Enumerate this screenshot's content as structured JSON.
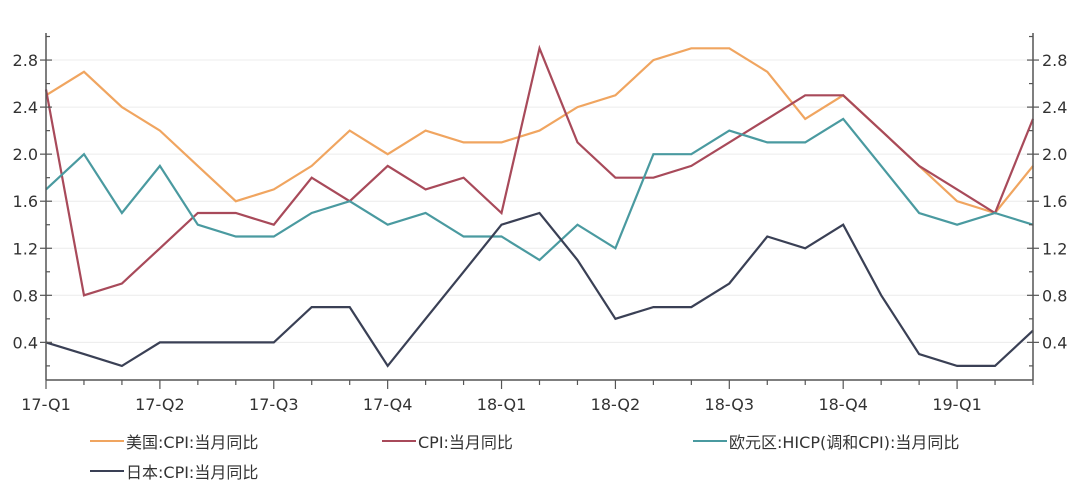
{
  "chart_data": {
    "type": "line",
    "title": "",
    "xlabel": "",
    "ylabel": "",
    "ylim": [
      0.08,
      3.03
    ],
    "y_ticks": [
      0.4,
      0.8,
      1.2,
      1.6,
      2.0,
      2.4,
      2.8
    ],
    "y_tick_labels": [
      "0.4",
      "0.8",
      "1.2",
      "1.6",
      "2.0",
      "2.4",
      "2.8"
    ],
    "y_right_tick_labels": [
      "0.4",
      "0.8",
      "1.2",
      "1.6",
      "2.0",
      "2.4",
      "2.8"
    ],
    "x_tick_labels": [
      "17-Q1",
      "17-Q2",
      "17-Q3",
      "17-Q4",
      "18-Q1",
      "18-Q2",
      "18-Q3",
      "18-Q4",
      "19-Q1"
    ],
    "grid": true,
    "legend_position": "bottom",
    "n_points": 27,
    "series": [
      {
        "name": "美国:CPI:当月同比",
        "color": "#f0a560",
        "values": [
          2.5,
          2.7,
          2.4,
          2.2,
          1.9,
          1.6,
          1.7,
          1.9,
          2.2,
          2.0,
          2.2,
          2.1,
          2.1,
          2.2,
          2.4,
          2.5,
          2.8,
          2.9,
          2.9,
          2.7,
          2.3,
          2.5,
          2.2,
          1.9,
          1.6,
          1.5,
          1.9
        ]
      },
      {
        "name": "CPI:当月同比",
        "color": "#a84a5a",
        "values": [
          2.55,
          0.8,
          0.9,
          1.2,
          1.5,
          1.5,
          1.4,
          1.8,
          1.6,
          1.9,
          1.7,
          1.8,
          1.5,
          2.9,
          2.1,
          1.8,
          1.8,
          1.9,
          2.1,
          2.3,
          2.5,
          2.5,
          2.2,
          1.9,
          1.7,
          1.5,
          2.3
        ]
      },
      {
        "name": "欧元区:HICP(调和CPI):当月同比",
        "color": "#4a9aa0",
        "values": [
          1.7,
          2.0,
          1.5,
          1.9,
          1.4,
          1.3,
          1.3,
          1.5,
          1.6,
          1.4,
          1.5,
          1.3,
          1.3,
          1.1,
          1.4,
          1.2,
          2.0,
          2.0,
          2.2,
          2.1,
          2.1,
          2.3,
          1.9,
          1.5,
          1.4,
          1.5,
          1.4
        ]
      },
      {
        "name": "日本:CPI:当月同比",
        "color": "#3a4055",
        "values": [
          0.4,
          0.3,
          0.2,
          0.4,
          0.4,
          0.4,
          0.4,
          0.7,
          0.7,
          0.2,
          0.6,
          1.0,
          1.4,
          1.5,
          1.1,
          0.6,
          0.7,
          0.7,
          0.9,
          1.3,
          1.2,
          1.4,
          0.8,
          0.3,
          0.2,
          0.2,
          0.5
        ]
      }
    ]
  },
  "legend": {
    "items": [
      {
        "label": "美国:CPI:当月同比",
        "color": "#f0a560"
      },
      {
        "label": "CPI:当月同比",
        "color": "#a84a5a"
      },
      {
        "label": "欧元区:HICP(调和CPI):当月同比",
        "color": "#4a9aa0"
      },
      {
        "label": "日本:CPI:当月同比",
        "color": "#3a4055"
      }
    ]
  }
}
